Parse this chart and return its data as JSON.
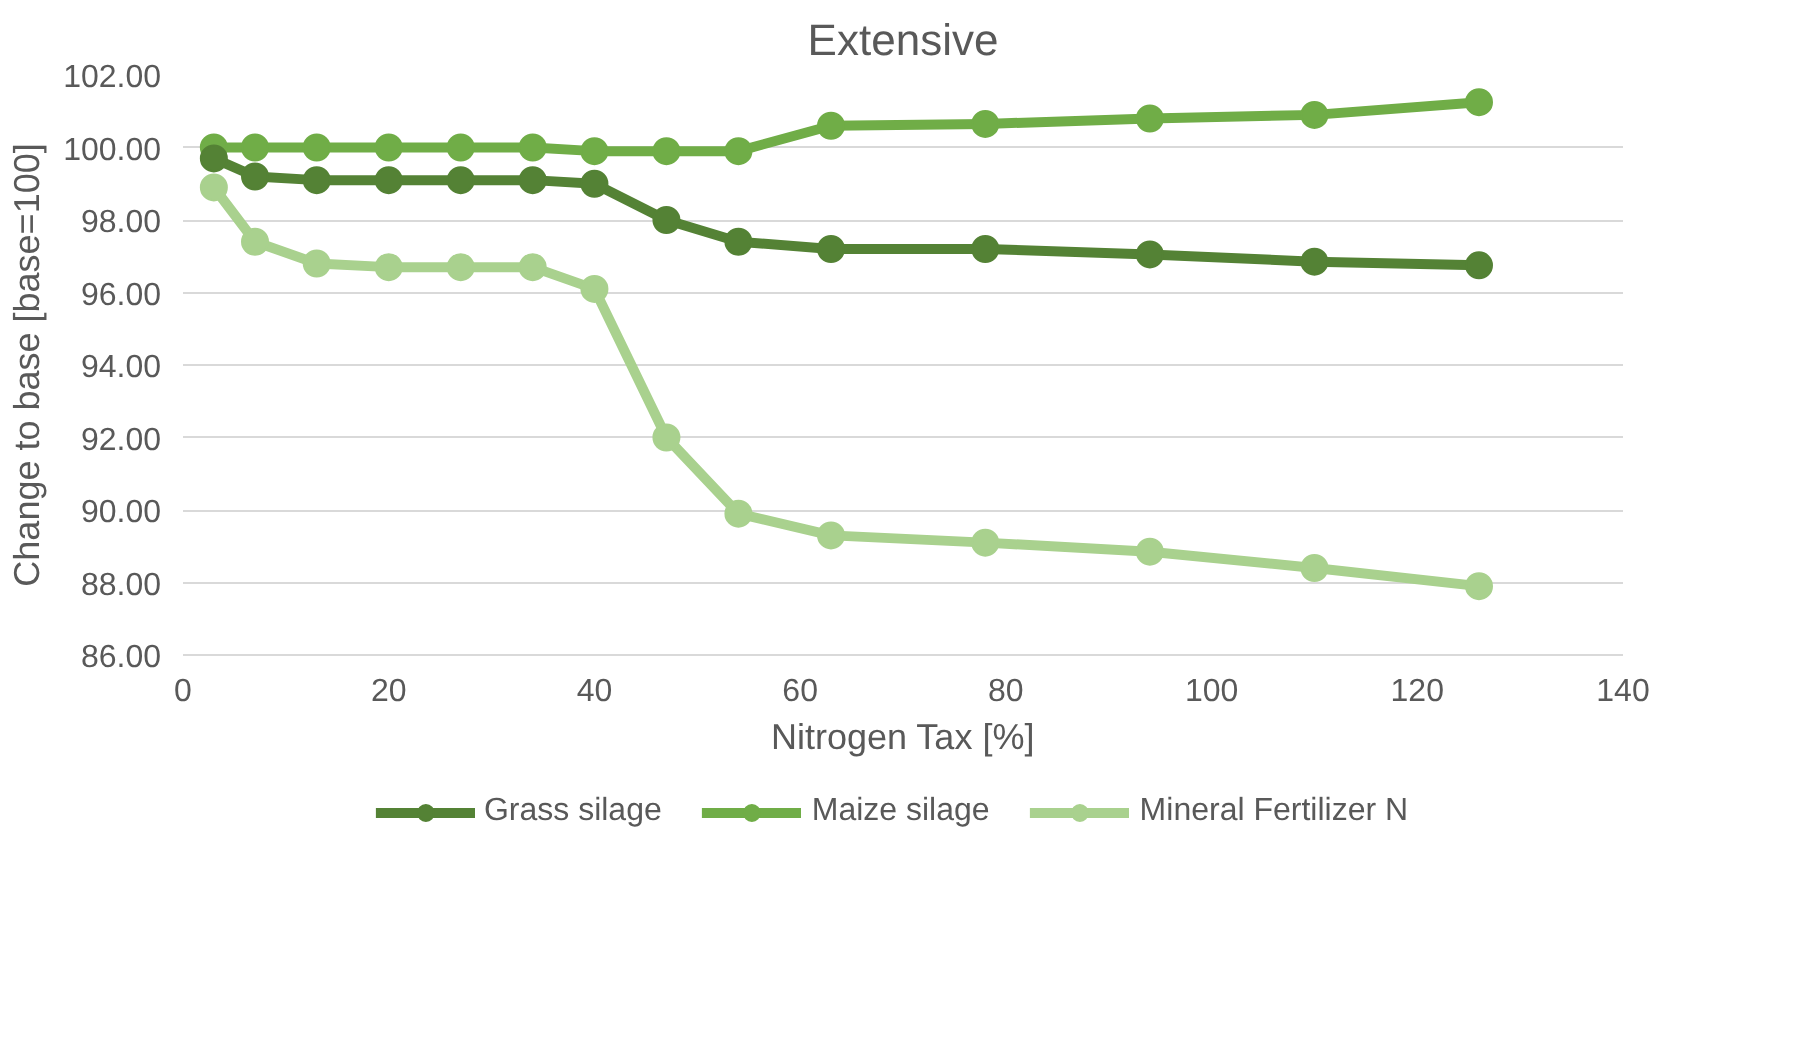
{
  "chart_data": {
    "type": "line",
    "title": "Extensive",
    "xlabel": "Nitrogen Tax [%]",
    "ylabel": "Change to base [base=100]",
    "x": [
      3,
      7,
      13,
      20,
      27,
      34,
      40,
      47,
      54,
      63,
      78,
      94,
      110,
      126
    ],
    "series": [
      {
        "name": "Grass silage",
        "color": "#548235",
        "values": [
          99.7,
          99.2,
          99.1,
          99.1,
          99.1,
          99.1,
          99.0,
          98.0,
          97.4,
          97.2,
          97.2,
          97.05,
          96.85,
          96.75
        ]
      },
      {
        "name": "Maize silage",
        "color": "#70ad47",
        "values": [
          100.0,
          100.0,
          100.0,
          100.0,
          100.0,
          100.0,
          99.9,
          99.9,
          99.9,
          100.6,
          100.65,
          100.8,
          100.9,
          101.25
        ]
      },
      {
        "name": "Mineral Fertilizer N",
        "color": "#a9d18e",
        "values": [
          98.9,
          97.4,
          96.8,
          96.7,
          96.7,
          96.7,
          96.1,
          92.0,
          89.9,
          89.3,
          89.1,
          88.85,
          88.4,
          87.9
        ]
      }
    ],
    "xlim": [
      0,
      140
    ],
    "xticks": [
      0,
      20,
      40,
      60,
      80,
      100,
      120,
      140
    ],
    "ylim": [
      86,
      102
    ],
    "yticks": [
      {
        "value": 86,
        "label": "86.00"
      },
      {
        "value": 88,
        "label": "88.00"
      },
      {
        "value": 90,
        "label": "90.00"
      },
      {
        "value": 92,
        "label": "92.00"
      },
      {
        "value": 94,
        "label": "94.00"
      },
      {
        "value": 96,
        "label": "96.00"
      },
      {
        "value": 98,
        "label": "98.00"
      },
      {
        "value": 100,
        "label": "100.00"
      },
      {
        "value": 102,
        "label": "102.00"
      }
    ],
    "grid": "y",
    "legend": "bottom",
    "marker": "circle",
    "line_style": "solid"
  }
}
